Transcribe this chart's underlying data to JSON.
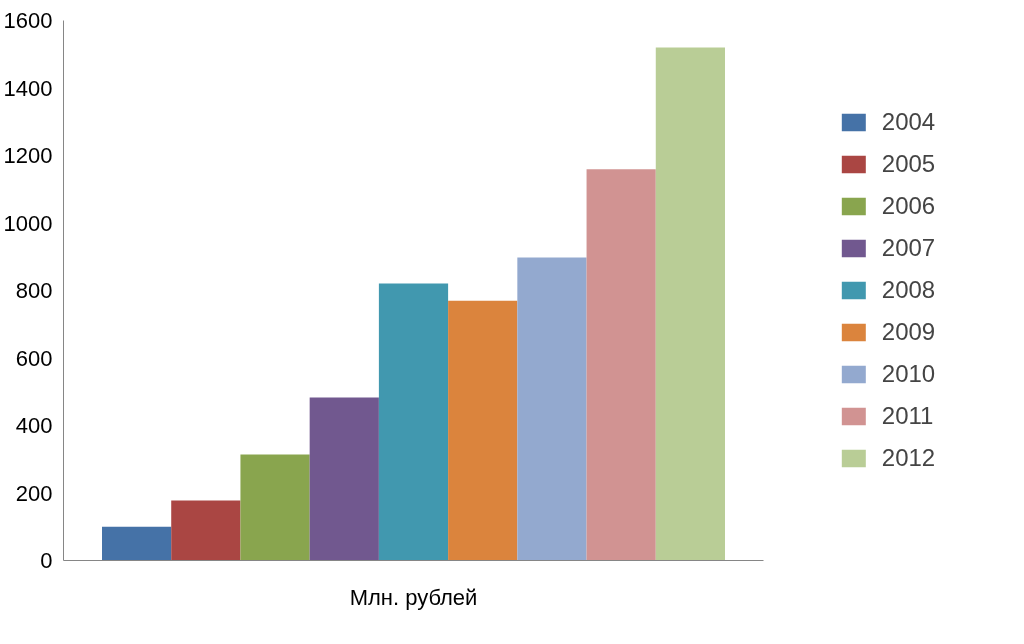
{
  "chart_data": {
    "type": "bar",
    "categories": [
      "Млн. рублей"
    ],
    "series": [
      {
        "name": "2004",
        "color": "#4572a7",
        "values": [
          100
        ]
      },
      {
        "name": "2005",
        "color": "#aa4643",
        "values": [
          178
        ]
      },
      {
        "name": "2006",
        "color": "#89a54e",
        "values": [
          314
        ]
      },
      {
        "name": "2007",
        "color": "#71588f",
        "values": [
          483
        ]
      },
      {
        "name": "2008",
        "color": "#4198af",
        "values": [
          821
        ]
      },
      {
        "name": "2009",
        "color": "#db843d",
        "values": [
          770
        ]
      },
      {
        "name": "2010",
        "color": "#93a9cf",
        "values": [
          898
        ]
      },
      {
        "name": "2011",
        "color": "#d19392",
        "values": [
          1159
        ]
      },
      {
        "name": "2012",
        "color": "#b9cd96",
        "values": [
          1520
        ]
      }
    ],
    "ylim": [
      0,
      1600
    ],
    "yticks": [
      0,
      200,
      400,
      600,
      800,
      1000,
      1200,
      1400,
      1600
    ],
    "grid": false,
    "legend": "right"
  }
}
